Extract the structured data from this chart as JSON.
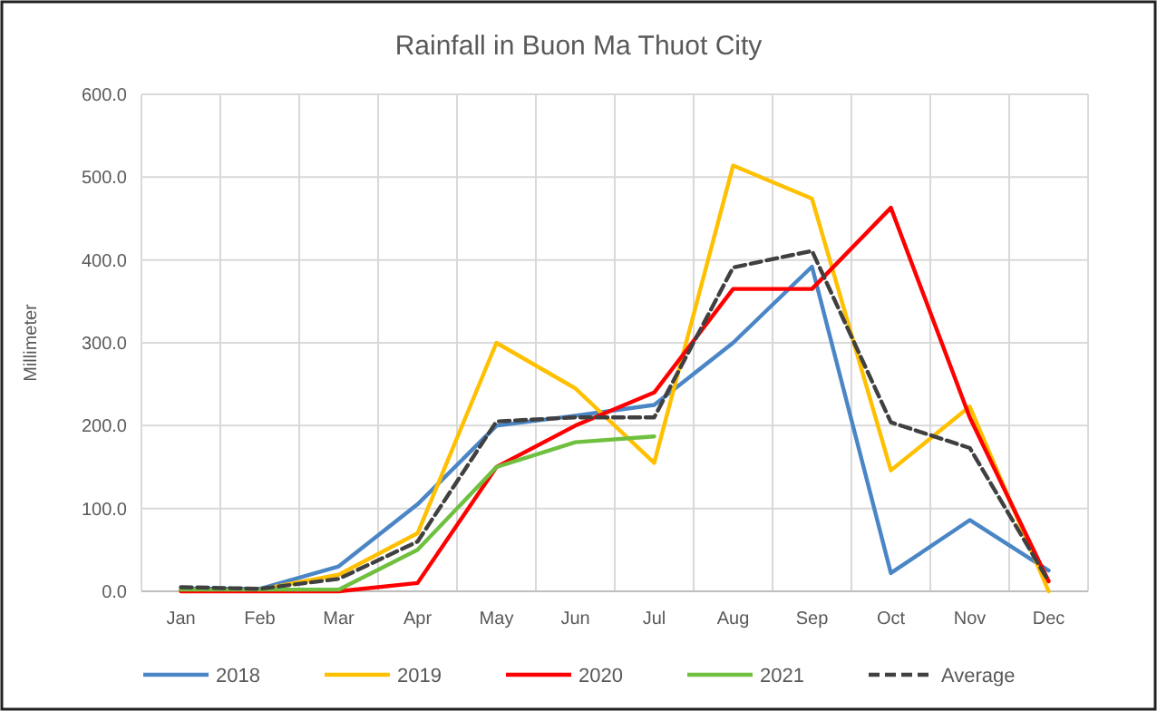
{
  "chart_data": {
    "type": "line",
    "title": "Rainfall in Buon Ma Thuot City",
    "ylabel": "Millimeter",
    "categories": [
      "Jan",
      "Feb",
      "Mar",
      "Apr",
      "May",
      "Jun",
      "Jul",
      "Aug",
      "Sep",
      "Oct",
      "Nov",
      "Dec"
    ],
    "series": [
      {
        "name": "2018",
        "color": "#4a86c6",
        "values": [
          3,
          3,
          30,
          105,
          200,
          212,
          225,
          300,
          392,
          22,
          86,
          25
        ]
      },
      {
        "name": "2019",
        "color": "#ffc000",
        "values": [
          2,
          2,
          20,
          70,
          300,
          245,
          155,
          514,
          474,
          146,
          223,
          0
        ]
      },
      {
        "name": "2020",
        "color": "#ff0000",
        "values": [
          0,
          0,
          0,
          10,
          150,
          200,
          240,
          365,
          365,
          463,
          210,
          12
        ]
      },
      {
        "name": "2021",
        "color": "#70c040",
        "values": [
          2,
          2,
          2,
          50,
          150,
          180,
          187,
          null,
          null,
          null,
          null,
          null
        ]
      },
      {
        "name": "Average",
        "color": "#404040",
        "line_style": "dashed",
        "values": [
          5,
          3,
          15,
          60,
          205,
          210,
          210,
          391,
          411,
          204,
          173,
          12
        ]
      }
    ],
    "ylim": [
      0,
      600
    ],
    "yticks": [
      {
        "value": 0,
        "label": "0.0"
      },
      {
        "value": 100,
        "label": "100.0"
      },
      {
        "value": 200,
        "label": "200.0"
      },
      {
        "value": 300,
        "label": "300.0"
      },
      {
        "value": 400,
        "label": "400.0"
      },
      {
        "value": 500,
        "label": "500.0"
      },
      {
        "value": 600,
        "label": "600.0"
      }
    ],
    "grid": true,
    "legend": "bottom",
    "marker": "none",
    "line_style": "solid"
  }
}
